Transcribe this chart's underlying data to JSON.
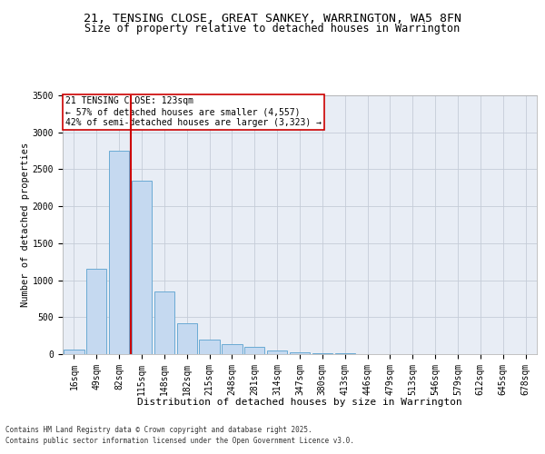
{
  "title1": "21, TENSING CLOSE, GREAT SANKEY, WARRINGTON, WA5 8FN",
  "title2": "Size of property relative to detached houses in Warrington",
  "xlabel": "Distribution of detached houses by size in Warrington",
  "ylabel": "Number of detached properties",
  "categories": [
    "16sqm",
    "49sqm",
    "82sqm",
    "115sqm",
    "148sqm",
    "182sqm",
    "215sqm",
    "248sqm",
    "281sqm",
    "314sqm",
    "347sqm",
    "380sqm",
    "413sqm",
    "446sqm",
    "479sqm",
    "513sqm",
    "546sqm",
    "579sqm",
    "612sqm",
    "645sqm",
    "678sqm"
  ],
  "values": [
    60,
    1150,
    2750,
    2350,
    850,
    420,
    200,
    130,
    100,
    50,
    20,
    15,
    8,
    5,
    3,
    2,
    1,
    1,
    0,
    0,
    0
  ],
  "bar_color": "#c5d9f0",
  "bar_edge_color": "#6aaad4",
  "vline_color": "#cc0000",
  "vline_position": 2.5,
  "annotation_title": "21 TENSING CLOSE: 123sqm",
  "annotation_line1": "← 57% of detached houses are smaller (4,557)",
  "annotation_line2": "42% of semi-detached houses are larger (3,323) →",
  "annotation_box_edgecolor": "#cc0000",
  "footnote1": "Contains HM Land Registry data © Crown copyright and database right 2025.",
  "footnote2": "Contains public sector information licensed under the Open Government Licence v3.0.",
  "bg_color": "#ffffff",
  "axes_bg_color": "#e8edf5",
  "grid_color": "#c5ccd8",
  "ylim": [
    0,
    3500
  ],
  "yticks": [
    0,
    500,
    1000,
    1500,
    2000,
    2500,
    3000,
    3500
  ],
  "title1_fontsize": 9.5,
  "title2_fontsize": 8.5,
  "tick_fontsize": 7,
  "xlabel_fontsize": 8,
  "ylabel_fontsize": 7.5,
  "annot_fontsize": 7,
  "footnote_fontsize": 5.5
}
